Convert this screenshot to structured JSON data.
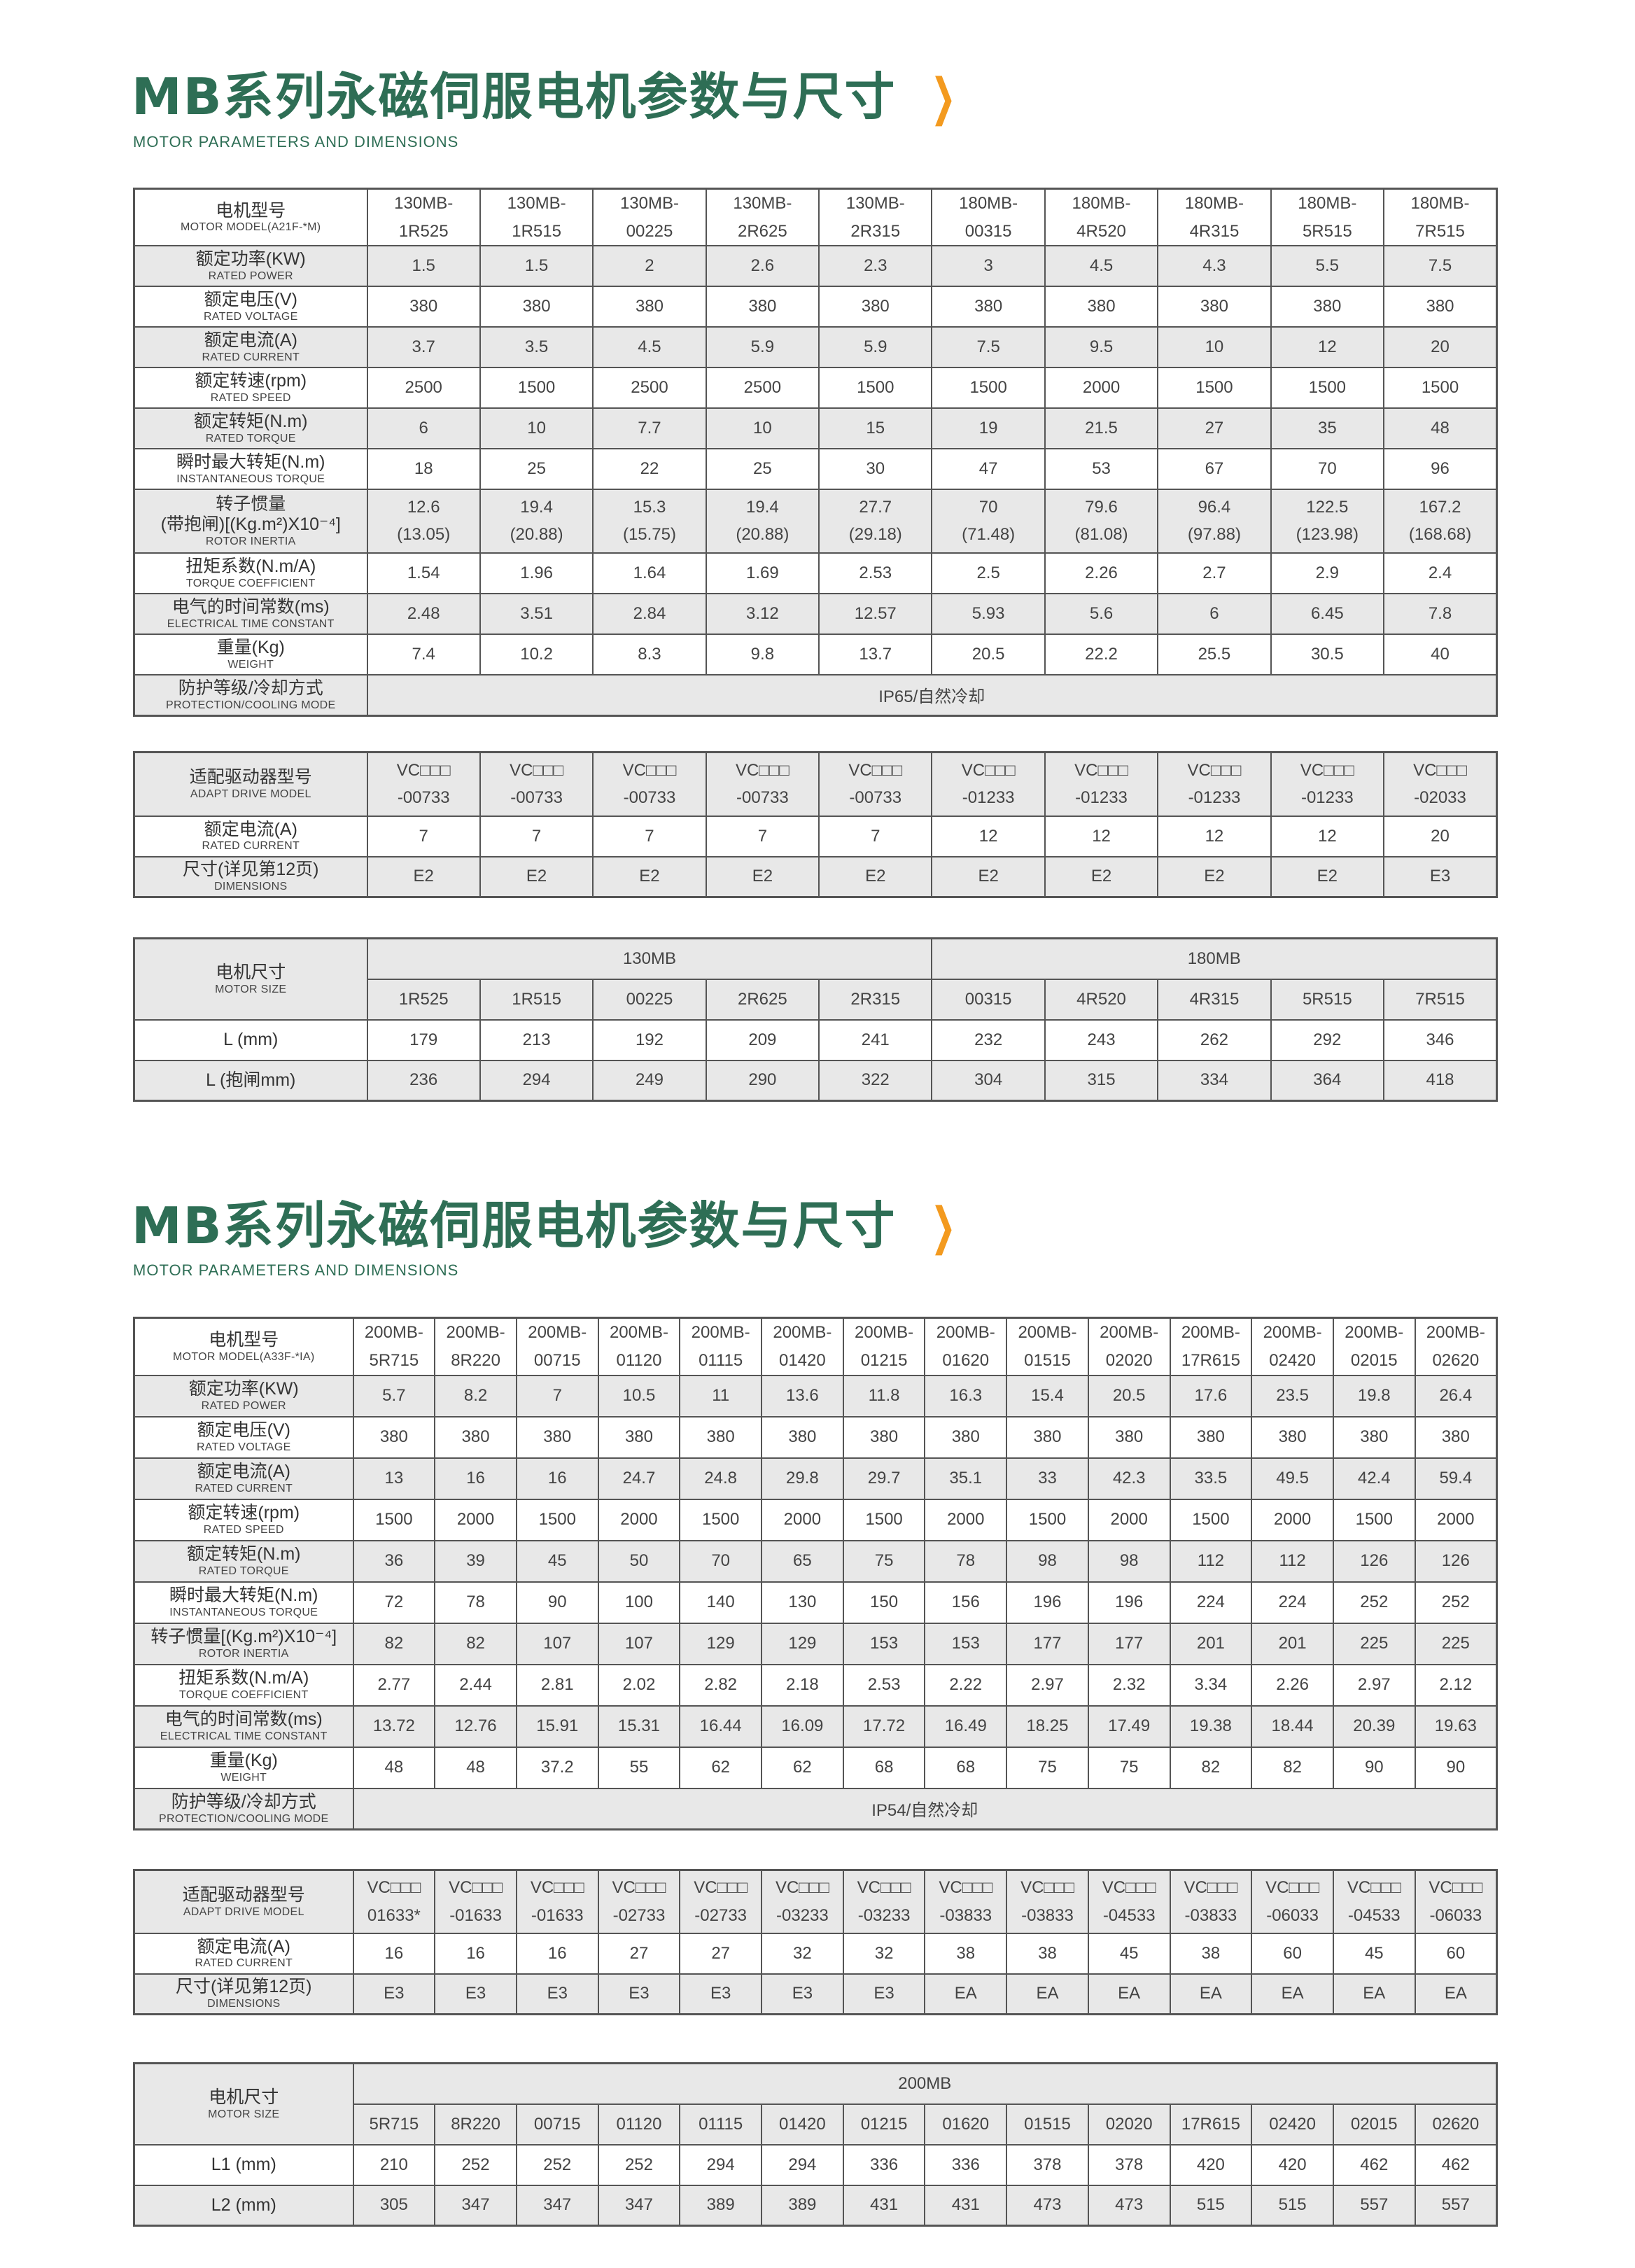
{
  "colors": {
    "title": "#2e6e55",
    "accent": "#f39a1f",
    "row_shade": "#e8e8e8",
    "border": "#555555"
  },
  "page1": {
    "title": "MB系列永磁伺服电机参数与尺寸",
    "chevron_icon": "chevron-right-icon",
    "subtitle": "MOTOR PARAMETERS AND DIMENSIONS",
    "spec": {
      "header": {
        "cn": "电机型号",
        "en": "MOTOR MODEL(A21F-*M)"
      },
      "models": [
        {
          "l1": "130MB-",
          "l2": "1R525"
        },
        {
          "l1": "130MB-",
          "l2": "1R515"
        },
        {
          "l1": "130MB-",
          "l2": "00225"
        },
        {
          "l1": "130MB-",
          "l2": "2R625"
        },
        {
          "l1": "130MB-",
          "l2": "2R315"
        },
        {
          "l1": "180MB-",
          "l2": "00315"
        },
        {
          "l1": "180MB-",
          "l2": "4R520"
        },
        {
          "l1": "180MB-",
          "l2": "4R315"
        },
        {
          "l1": "180MB-",
          "l2": "5R515"
        },
        {
          "l1": "180MB-",
          "l2": "7R515"
        }
      ],
      "rows": [
        {
          "cn": "额定功率(KW)",
          "en": "RATED POWER",
          "values": [
            "1.5",
            "1.5",
            "2",
            "2.6",
            "2.3",
            "3",
            "4.5",
            "4.3",
            "5.5",
            "7.5"
          ]
        },
        {
          "cn": "额定电压(V)",
          "en": "RATED VOLTAGE",
          "values": [
            "380",
            "380",
            "380",
            "380",
            "380",
            "380",
            "380",
            "380",
            "380",
            "380"
          ]
        },
        {
          "cn": "额定电流(A)",
          "en": "RATED CURRENT",
          "values": [
            "3.7",
            "3.5",
            "4.5",
            "5.9",
            "5.9",
            "7.5",
            "9.5",
            "10",
            "12",
            "20"
          ]
        },
        {
          "cn": "额定转速(rpm)",
          "en": "RATED SPEED",
          "values": [
            "2500",
            "1500",
            "2500",
            "2500",
            "1500",
            "1500",
            "2000",
            "1500",
            "1500",
            "1500"
          ]
        },
        {
          "cn": "额定转矩(N.m)",
          "en": "RATED TORQUE",
          "values": [
            "6",
            "10",
            "7.7",
            "10",
            "15",
            "19",
            "21.5",
            "27",
            "35",
            "48"
          ]
        },
        {
          "cn": "瞬时最大转矩(N.m)",
          "en": "INSTANTANEOUS TORQUE",
          "values": [
            "18",
            "25",
            "22",
            "25",
            "30",
            "47",
            "53",
            "67",
            "70",
            "96"
          ]
        },
        {
          "cn": "转子惯量",
          "cn2": "(带抱闸)[(Kg.m²)X10⁻⁴]",
          "en": "ROTOR INERTIA",
          "values": [
            "12.6",
            "19.4",
            "15.3",
            "19.4",
            "27.7",
            "70",
            "79.6",
            "96.4",
            "122.5",
            "167.2"
          ],
          "values_brake": [
            "(13.05)",
            "(20.88)",
            "(15.75)",
            "(20.88)",
            "(29.18)",
            "(71.48)",
            "(81.08)",
            "(97.88)",
            "(123.98)",
            "(168.68)"
          ]
        },
        {
          "cn": "扭矩系数(N.m/A)",
          "en": "TORQUE COEFFICIENT",
          "values": [
            "1.54",
            "1.96",
            "1.64",
            "1.69",
            "2.53",
            "2.5",
            "2.26",
            "2.7",
            "2.9",
            "2.4"
          ]
        },
        {
          "cn": "电气的时间常数(ms)",
          "en": "ELECTRICAL TIME CONSTANT",
          "values": [
            "2.48",
            "3.51",
            "2.84",
            "3.12",
            "12.57",
            "5.93",
            "5.6",
            "6",
            "6.45",
            "7.8"
          ]
        },
        {
          "cn": "重量(Kg)",
          "en": "WEIGHT",
          "values": [
            "7.4",
            "10.2",
            "8.3",
            "9.8",
            "13.7",
            "20.5",
            "22.2",
            "25.5",
            "30.5",
            "40"
          ]
        }
      ],
      "protection": {
        "cn": "防护等级/冷却方式",
        "en": "PROTECTION/COOLING MODE",
        "value": "IP65/自然冷却"
      }
    },
    "drive": {
      "header": {
        "cn": "适配驱动器型号",
        "en": "ADAPT DRIVE MODEL"
      },
      "models": [
        {
          "l1": "VC□□□",
          "l2": "-00733"
        },
        {
          "l1": "VC□□□",
          "l2": "-00733"
        },
        {
          "l1": "VC□□□",
          "l2": "-00733"
        },
        {
          "l1": "VC□□□",
          "l2": "-00733"
        },
        {
          "l1": "VC□□□",
          "l2": "-00733"
        },
        {
          "l1": "VC□□□",
          "l2": "-01233"
        },
        {
          "l1": "VC□□□",
          "l2": "-01233"
        },
        {
          "l1": "VC□□□",
          "l2": "-01233"
        },
        {
          "l1": "VC□□□",
          "l2": "-01233"
        },
        {
          "l1": "VC□□□",
          "l2": "-02033"
        }
      ],
      "rows": [
        {
          "cn": "额定电流(A)",
          "en": "RATED CURRENT",
          "values": [
            "7",
            "7",
            "7",
            "7",
            "7",
            "12",
            "12",
            "12",
            "12",
            "20"
          ]
        },
        {
          "cn": "尺寸(详见第12页)",
          "en": "DIMENSIONS",
          "values": [
            "E2",
            "E2",
            "E2",
            "E2",
            "E2",
            "E2",
            "E2",
            "E2",
            "E2",
            "E3"
          ]
        }
      ]
    },
    "size": {
      "header": {
        "cn": "电机尺寸",
        "en": "MOTOR SIZE"
      },
      "groups": [
        {
          "name": "130MB",
          "models": [
            "1R525",
            "1R515",
            "00225",
            "2R625",
            "2R315"
          ]
        },
        {
          "name": "180MB",
          "models": [
            "00315",
            "4R520",
            "4R315",
            "5R515",
            "7R515"
          ]
        }
      ],
      "rows": [
        {
          "label": "L (mm)",
          "values": [
            "179",
            "213",
            "192",
            "209",
            "241",
            "232",
            "243",
            "262",
            "292",
            "346"
          ]
        },
        {
          "label": "L (抱闸mm)",
          "values": [
            "236",
            "294",
            "249",
            "290",
            "322",
            "304",
            "315",
            "334",
            "364",
            "418"
          ]
        }
      ]
    }
  },
  "page2": {
    "title": "MB系列永磁伺服电机参数与尺寸",
    "chevron_icon": "chevron-right-icon",
    "subtitle": "MOTOR PARAMETERS AND DIMENSIONS",
    "spec": {
      "header": {
        "cn": "电机型号",
        "en": "MOTOR MODEL(A33F-*IA)"
      },
      "models": [
        {
          "l1": "200MB-",
          "l2": "5R715"
        },
        {
          "l1": "200MB-",
          "l2": "8R220"
        },
        {
          "l1": "200MB-",
          "l2": "00715"
        },
        {
          "l1": "200MB-",
          "l2": "01120"
        },
        {
          "l1": "200MB-",
          "l2": "01115"
        },
        {
          "l1": "200MB-",
          "l2": "01420"
        },
        {
          "l1": "200MB-",
          "l2": "01215"
        },
        {
          "l1": "200MB-",
          "l2": "01620"
        },
        {
          "l1": "200MB-",
          "l2": "01515"
        },
        {
          "l1": "200MB-",
          "l2": "02020"
        },
        {
          "l1": "200MB-",
          "l2": "17R615"
        },
        {
          "l1": "200MB-",
          "l2": "02420"
        },
        {
          "l1": "200MB-",
          "l2": "02015"
        },
        {
          "l1": "200MB-",
          "l2": "02620"
        }
      ],
      "rows": [
        {
          "cn": "额定功率(KW)",
          "en": "RATED POWER",
          "values": [
            "5.7",
            "8.2",
            "7",
            "10.5",
            "11",
            "13.6",
            "11.8",
            "16.3",
            "15.4",
            "20.5",
            "17.6",
            "23.5",
            "19.8",
            "26.4"
          ]
        },
        {
          "cn": "额定电压(V)",
          "en": "RATED VOLTAGE",
          "values": [
            "380",
            "380",
            "380",
            "380",
            "380",
            "380",
            "380",
            "380",
            "380",
            "380",
            "380",
            "380",
            "380",
            "380"
          ]
        },
        {
          "cn": "额定电流(A)",
          "en": "RATED CURRENT",
          "values": [
            "13",
            "16",
            "16",
            "24.7",
            "24.8",
            "29.8",
            "29.7",
            "35.1",
            "33",
            "42.3",
            "33.5",
            "49.5",
            "42.4",
            "59.4"
          ]
        },
        {
          "cn": "额定转速(rpm)",
          "en": "RATED SPEED",
          "values": [
            "1500",
            "2000",
            "1500",
            "2000",
            "1500",
            "2000",
            "1500",
            "2000",
            "1500",
            "2000",
            "1500",
            "2000",
            "1500",
            "2000"
          ]
        },
        {
          "cn": "额定转矩(N.m)",
          "en": "RATED TORQUE",
          "values": [
            "36",
            "39",
            "45",
            "50",
            "70",
            "65",
            "75",
            "78",
            "98",
            "98",
            "112",
            "112",
            "126",
            "126"
          ]
        },
        {
          "cn": "瞬时最大转矩(N.m)",
          "en": "INSTANTANEOUS TORQUE",
          "values": [
            "72",
            "78",
            "90",
            "100",
            "140",
            "130",
            "150",
            "156",
            "196",
            "196",
            "224",
            "224",
            "252",
            "252"
          ]
        },
        {
          "cn": "转子惯量[(Kg.m²)X10⁻⁴]",
          "en": "ROTOR INERTIA",
          "values": [
            "82",
            "82",
            "107",
            "107",
            "129",
            "129",
            "153",
            "153",
            "177",
            "177",
            "201",
            "201",
            "225",
            "225"
          ]
        },
        {
          "cn": "扭矩系数(N.m/A)",
          "en": "TORQUE COEFFICIENT",
          "values": [
            "2.77",
            "2.44",
            "2.81",
            "2.02",
            "2.82",
            "2.18",
            "2.53",
            "2.22",
            "2.97",
            "2.32",
            "3.34",
            "2.26",
            "2.97",
            "2.12"
          ]
        },
        {
          "cn": "电气的时间常数(ms)",
          "en": "ELECTRICAL TIME CONSTANT",
          "values": [
            "13.72",
            "12.76",
            "15.91",
            "15.31",
            "16.44",
            "16.09",
            "17.72",
            "16.49",
            "18.25",
            "17.49",
            "19.38",
            "18.44",
            "20.39",
            "19.63"
          ]
        },
        {
          "cn": "重量(Kg)",
          "en": "WEIGHT",
          "values": [
            "48",
            "48",
            "37.2",
            "55",
            "62",
            "62",
            "68",
            "68",
            "75",
            "75",
            "82",
            "82",
            "90",
            "90"
          ]
        }
      ],
      "protection": {
        "cn": "防护等级/冷却方式",
        "en": "PROTECTION/COOLING MODE",
        "value": "IP54/自然冷却"
      }
    },
    "drive": {
      "header": {
        "cn": "适配驱动器型号",
        "en": "ADAPT DRIVE MODEL"
      },
      "models": [
        {
          "l1": "VC□□□",
          "l2": "01633*"
        },
        {
          "l1": "VC□□□",
          "l2": "-01633"
        },
        {
          "l1": "VC□□□",
          "l2": "-01633"
        },
        {
          "l1": "VC□□□",
          "l2": "-02733"
        },
        {
          "l1": "VC□□□",
          "l2": "-02733"
        },
        {
          "l1": "VC□□□",
          "l2": "-03233"
        },
        {
          "l1": "VC□□□",
          "l2": "-03233"
        },
        {
          "l1": "VC□□□",
          "l2": "-03833"
        },
        {
          "l1": "VC□□□",
          "l2": "-03833"
        },
        {
          "l1": "VC□□□",
          "l2": "-04533"
        },
        {
          "l1": "VC□□□",
          "l2": "-03833"
        },
        {
          "l1": "VC□□□",
          "l2": "-06033"
        },
        {
          "l1": "VC□□□",
          "l2": "-04533"
        },
        {
          "l1": "VC□□□",
          "l2": "-06033"
        }
      ],
      "rows": [
        {
          "cn": "额定电流(A)",
          "en": "RATED CURRENT",
          "values": [
            "16",
            "16",
            "16",
            "27",
            "27",
            "32",
            "32",
            "38",
            "38",
            "45",
            "38",
            "60",
            "45",
            "60"
          ]
        },
        {
          "cn": "尺寸(详见第12页)",
          "en": "DIMENSIONS",
          "values": [
            "E3",
            "E3",
            "E3",
            "E3",
            "E3",
            "E3",
            "E3",
            "EA",
            "EA",
            "EA",
            "EA",
            "EA",
            "EA",
            "EA"
          ]
        }
      ]
    },
    "size": {
      "header": {
        "cn": "电机尺寸",
        "en": "MOTOR SIZE"
      },
      "groups": [
        {
          "name": "200MB",
          "models": [
            "5R715",
            "8R220",
            "00715",
            "01120",
            "01115",
            "01420",
            "01215",
            "01620",
            "01515",
            "02020",
            "17R615",
            "02420",
            "02015",
            "02620"
          ]
        }
      ],
      "rows": [
        {
          "label": "L1 (mm)",
          "values": [
            "210",
            "252",
            "252",
            "252",
            "294",
            "294",
            "336",
            "336",
            "378",
            "378",
            "420",
            "420",
            "462",
            "462"
          ]
        },
        {
          "label": "L2 (mm)",
          "values": [
            "305",
            "347",
            "347",
            "347",
            "389",
            "389",
            "431",
            "431",
            "473",
            "473",
            "515",
            "515",
            "557",
            "557"
          ]
        }
      ]
    }
  }
}
